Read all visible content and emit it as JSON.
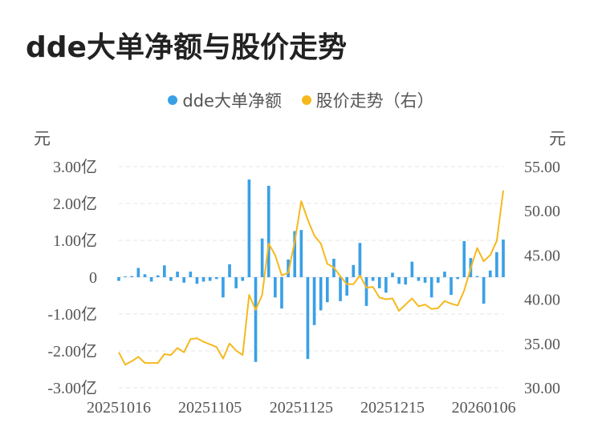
{
  "title": "dde大单净额与股价走势",
  "legend": [
    {
      "label": "dde大单净额",
      "color": "#3aa0e6"
    },
    {
      "label": "股价走势（右）",
      "color": "#f5b91f"
    }
  ],
  "units": {
    "left": "元",
    "right": "元"
  },
  "chart_data": {
    "type": "bar+line",
    "y_left": {
      "min": -3,
      "max": 3,
      "ticks": [
        3,
        2,
        1,
        0,
        -1,
        -2,
        -3
      ],
      "tick_labels": [
        "3.00亿",
        "2.00亿",
        "1.00亿",
        "0",
        "-1.00亿",
        "-2.00亿",
        "-3.00亿"
      ]
    },
    "y_right": {
      "min": 30,
      "max": 55,
      "ticks": [
        55,
        50,
        45,
        40,
        35,
        30
      ],
      "tick_labels": [
        "55.00",
        "50.00",
        "45.00",
        "40.00",
        "35.00",
        "30.00"
      ]
    },
    "x_tick_labels": [
      {
        "index": 0,
        "label": "20251016"
      },
      {
        "index": 14,
        "label": "20251105"
      },
      {
        "index": 28,
        "label": "20251125"
      },
      {
        "index": 42,
        "label": "20251215"
      },
      {
        "index": 56,
        "label": "20260106"
      }
    ],
    "grid": true,
    "series": [
      {
        "name": "dde大单净额",
        "type": "bar",
        "axis": "left",
        "values": [
          -0.1,
          0.02,
          0.03,
          0.25,
          0.08,
          -0.12,
          0.05,
          0.32,
          -0.1,
          0.15,
          -0.15,
          0.15,
          -0.18,
          -0.12,
          -0.1,
          -0.05,
          -0.55,
          0.35,
          -0.3,
          -0.1,
          2.65,
          -2.3,
          1.05,
          2.48,
          -0.55,
          -0.85,
          0.48,
          1.25,
          1.28,
          -2.22,
          -1.3,
          -0.9,
          -0.68,
          0.5,
          -0.65,
          -0.5,
          0.33,
          0.93,
          -0.78,
          -0.1,
          -0.3,
          -0.42,
          0.12,
          -0.18,
          -0.2,
          0.42,
          -0.1,
          -0.15,
          -0.55,
          -0.15,
          0.15,
          -0.48,
          -0.05,
          0.98,
          0.52,
          0.03,
          -0.72,
          0.18,
          0.68,
          1.02
        ]
      },
      {
        "name": "股价走势（右）",
        "type": "line",
        "axis": "right",
        "values": [
          34.0,
          32.6,
          33.0,
          33.5,
          32.8,
          32.8,
          32.8,
          33.8,
          33.7,
          34.5,
          34.0,
          35.5,
          35.6,
          35.2,
          34.9,
          34.6,
          33.3,
          35.0,
          34.2,
          33.7,
          40.5,
          38.8,
          40.5,
          46.3,
          45.0,
          42.7,
          43.0,
          46.5,
          51.1,
          49.0,
          47.2,
          46.3,
          44.0,
          43.6,
          42.6,
          41.7,
          41.7,
          42.7,
          41.3,
          41.4,
          40.2,
          40.0,
          40.1,
          38.7,
          39.4,
          40.1,
          39.2,
          39.4,
          38.9,
          39.0,
          39.8,
          39.5,
          39.3,
          41.0,
          43.5,
          45.8,
          44.3,
          45.0,
          46.6,
          52.3
        ]
      }
    ]
  }
}
